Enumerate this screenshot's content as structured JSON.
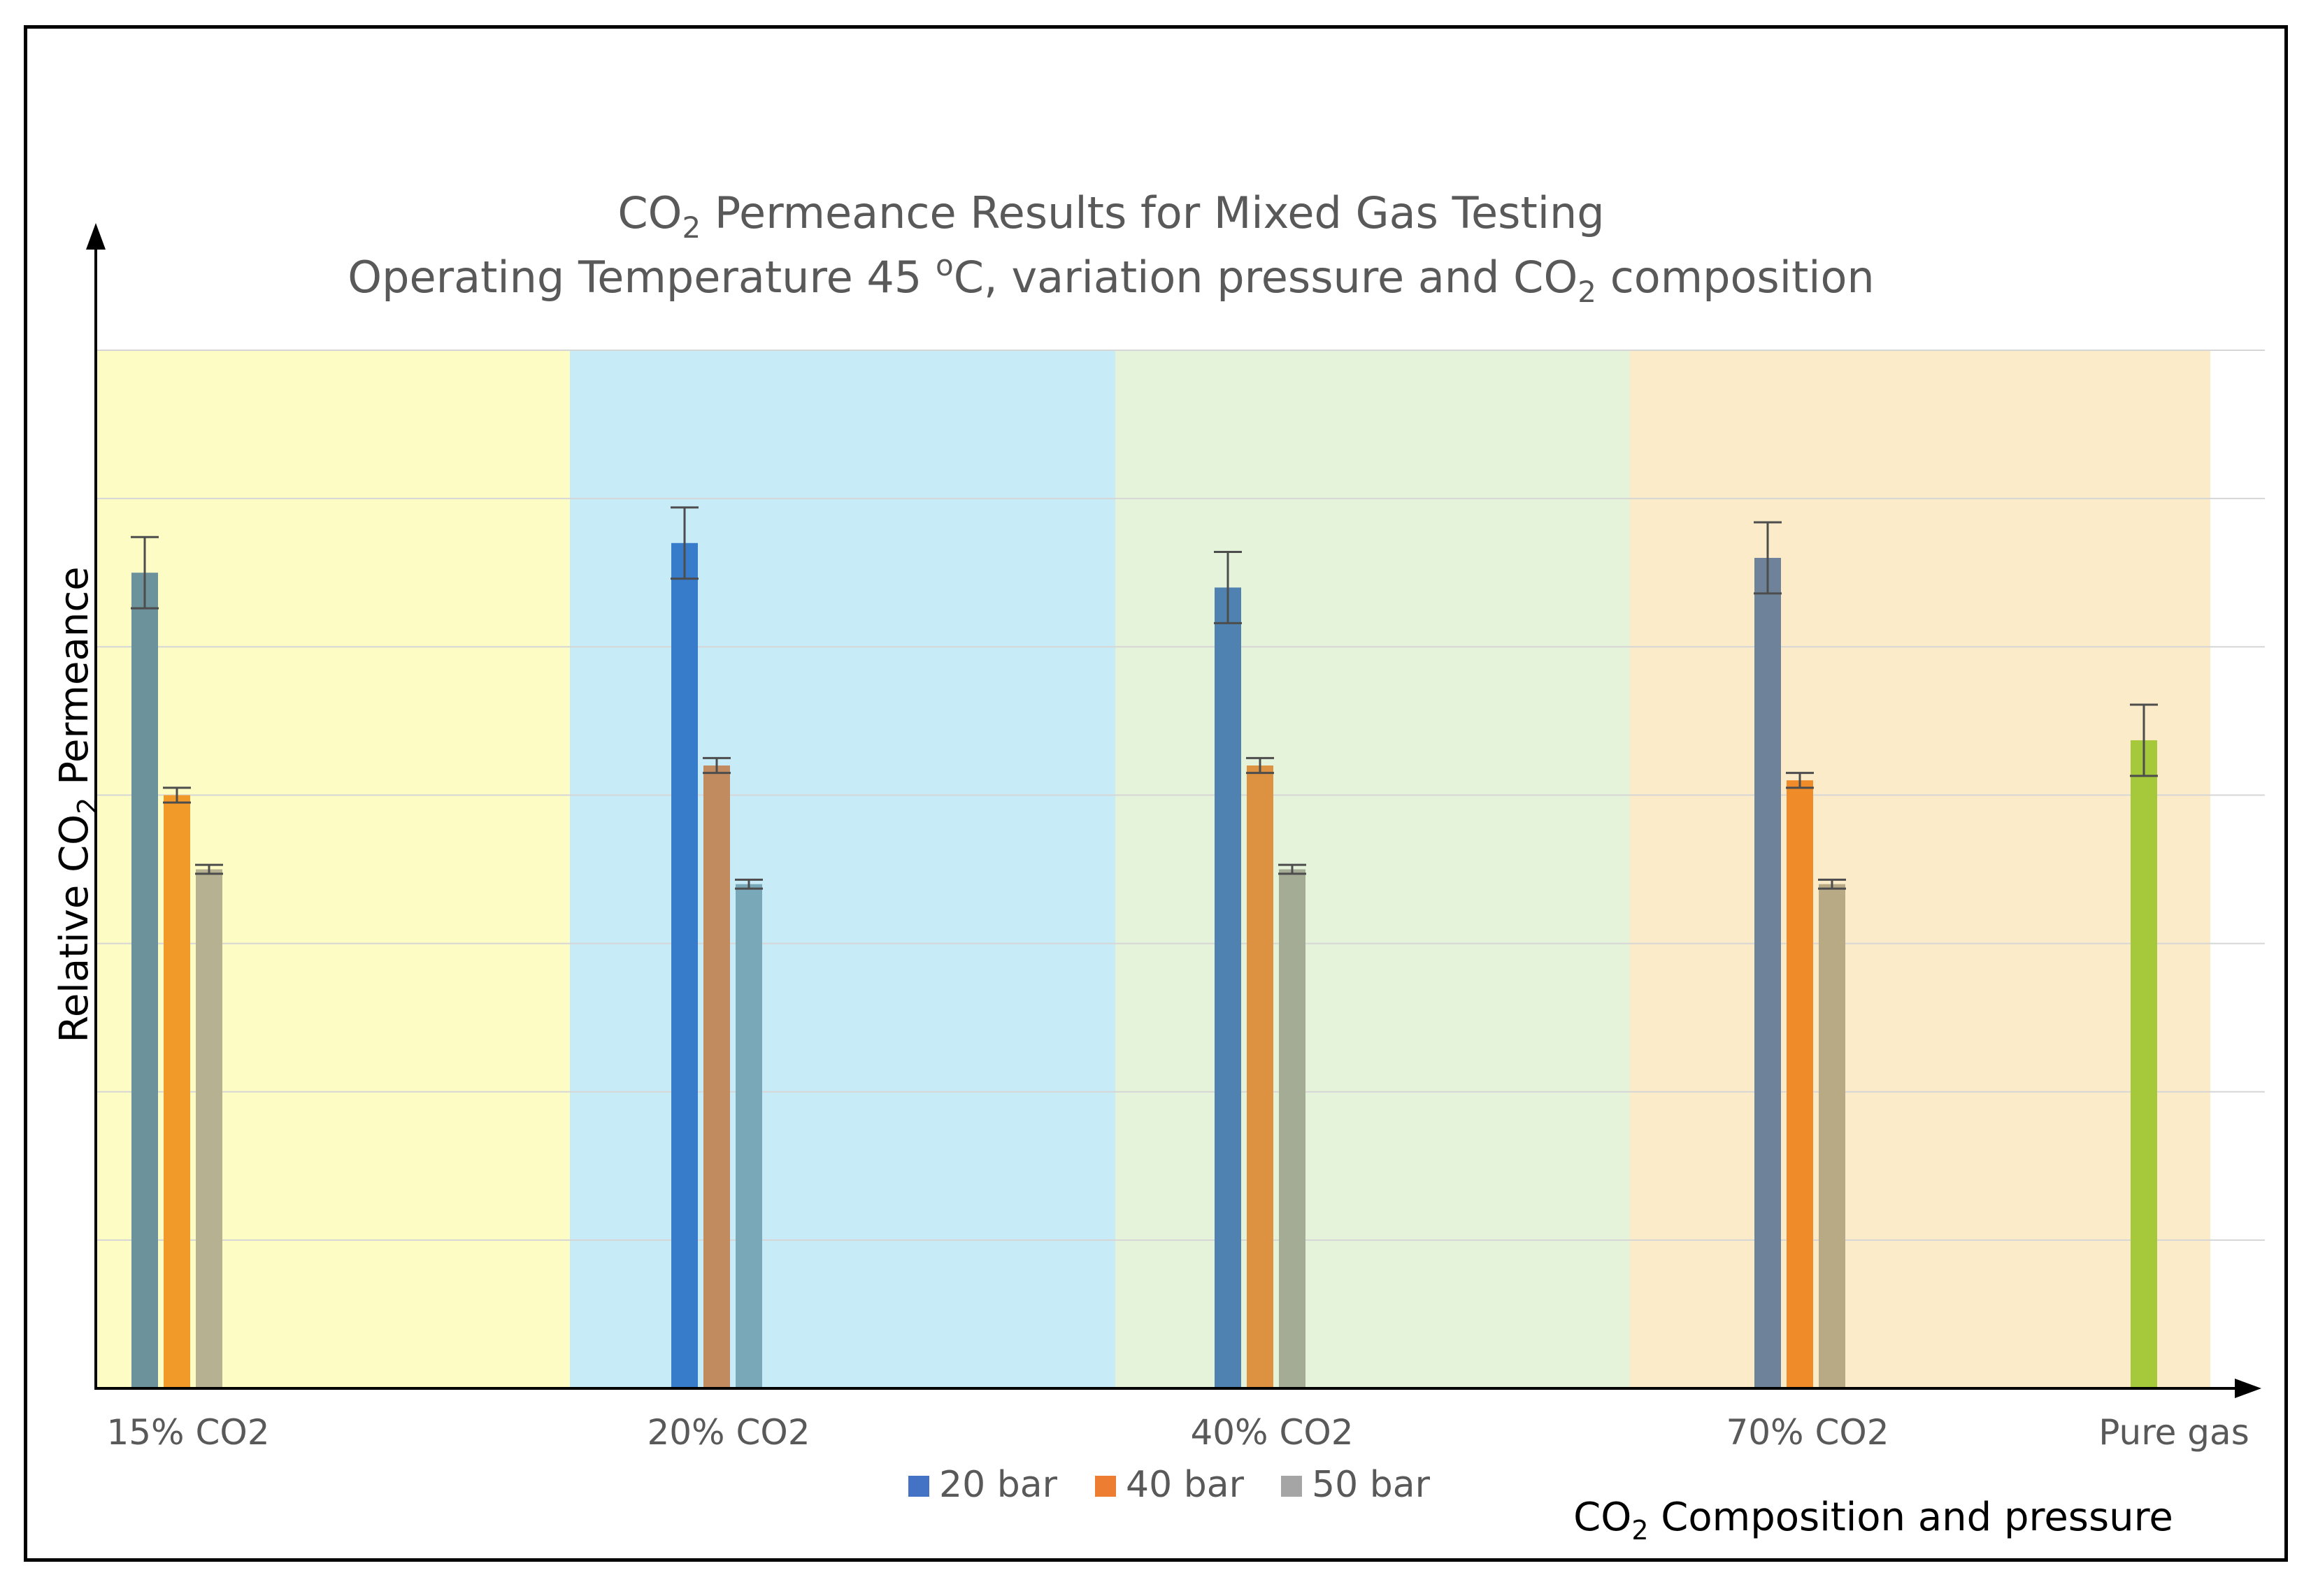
{
  "chart_data": {
    "type": "bar",
    "title_line1": {
      "pre": "CO",
      "sub": "2",
      "post": " Permeance Results for Mixed Gas Testing"
    },
    "title_line2": {
      "pre": "Operating Temperature 45 ",
      "sup": "o",
      "mid": "C, variation pressure and CO",
      "sub": "2",
      "post": " composition"
    },
    "ylabel": {
      "pre": "Relative CO",
      "sub": "2",
      "post": " Permeance"
    },
    "xlabel": {
      "pre": "CO",
      "sub": "2",
      "post": " Composition and pressure"
    },
    "ylim": [
      0,
      7
    ],
    "gridlines": 7,
    "groups": [
      {
        "label": "15% CO2",
        "bg": "#fdfcc4",
        "values": [
          5.5,
          4.0,
          3.5
        ],
        "errors": [
          0.24,
          0.05,
          0.03
        ],
        "colors": [
          "#6c929c",
          "#f29a29",
          "#b6b190"
        ]
      },
      {
        "label": "20% CO2",
        "bg": "#c8ebf8",
        "values": [
          5.7,
          4.2,
          3.4
        ],
        "errors": [
          0.24,
          0.05,
          0.03
        ],
        "colors": [
          "#377bcb",
          "#c18a5f",
          "#79a8b9"
        ]
      },
      {
        "label": "40% CO2",
        "bg": "#e5f3da",
        "values": [
          5.4,
          4.2,
          3.5
        ],
        "errors": [
          0.24,
          0.05,
          0.03
        ],
        "colors": [
          "#4f82b0",
          "#dc9241",
          "#a4ac96"
        ]
      },
      {
        "label": "70% CO2",
        "bg": "#fcebc8",
        "values": [
          5.6,
          4.1,
          3.4
        ],
        "errors": [
          0.24,
          0.05,
          0.03
        ],
        "colors": [
          "#6e8399",
          "#f08b2a",
          "#b9aa86"
        ]
      },
      {
        "label": "Pure gas",
        "bg": "#fcebc8",
        "values": [
          4.37
        ],
        "errors": [
          0.24
        ],
        "colors": [
          "#a6c83b"
        ]
      }
    ],
    "legend": [
      {
        "label": "20 bar",
        "color": "#4472c4"
      },
      {
        "label": "40 bar",
        "color": "#ed7d31"
      },
      {
        "label": "50 bar",
        "color": "#a5a5a5"
      }
    ]
  }
}
